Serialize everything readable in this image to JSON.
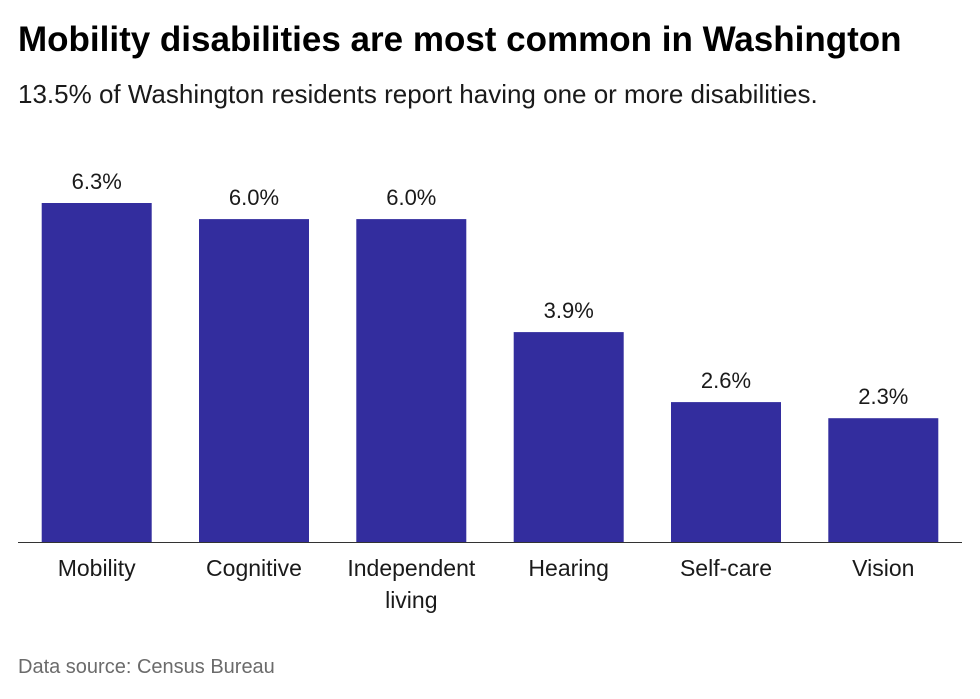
{
  "title": "Mobility disabilities are most common in Washington",
  "subtitle": "13.5% of Washington residents report having one or more disabilities.",
  "source": "Data source: Census Bureau",
  "colors": {
    "bar": "#332d9e",
    "axis": "#333333",
    "text": "#1a1a1a"
  },
  "chart_data": {
    "type": "bar",
    "title": "Mobility disabilities are most common in Washington",
    "subtitle": "13.5% of Washington residents report having one or more disabilities.",
    "categories": [
      "Mobility",
      "Cognitive",
      "Independent living",
      "Hearing",
      "Self-care",
      "Vision"
    ],
    "category_lines": [
      [
        "Mobility"
      ],
      [
        "Cognitive"
      ],
      [
        "Independent",
        "living"
      ],
      [
        "Hearing"
      ],
      [
        "Self-care"
      ],
      [
        "Vision"
      ]
    ],
    "values": [
      6.3,
      6.0,
      6.0,
      3.9,
      2.6,
      2.3
    ],
    "data_labels": [
      "6.3%",
      "6.0%",
      "6.0%",
      "3.9%",
      "2.6%",
      "2.3%"
    ],
    "unit": "%",
    "ylim": [
      0,
      6.3
    ],
    "grid": false,
    "legend": "none"
  }
}
